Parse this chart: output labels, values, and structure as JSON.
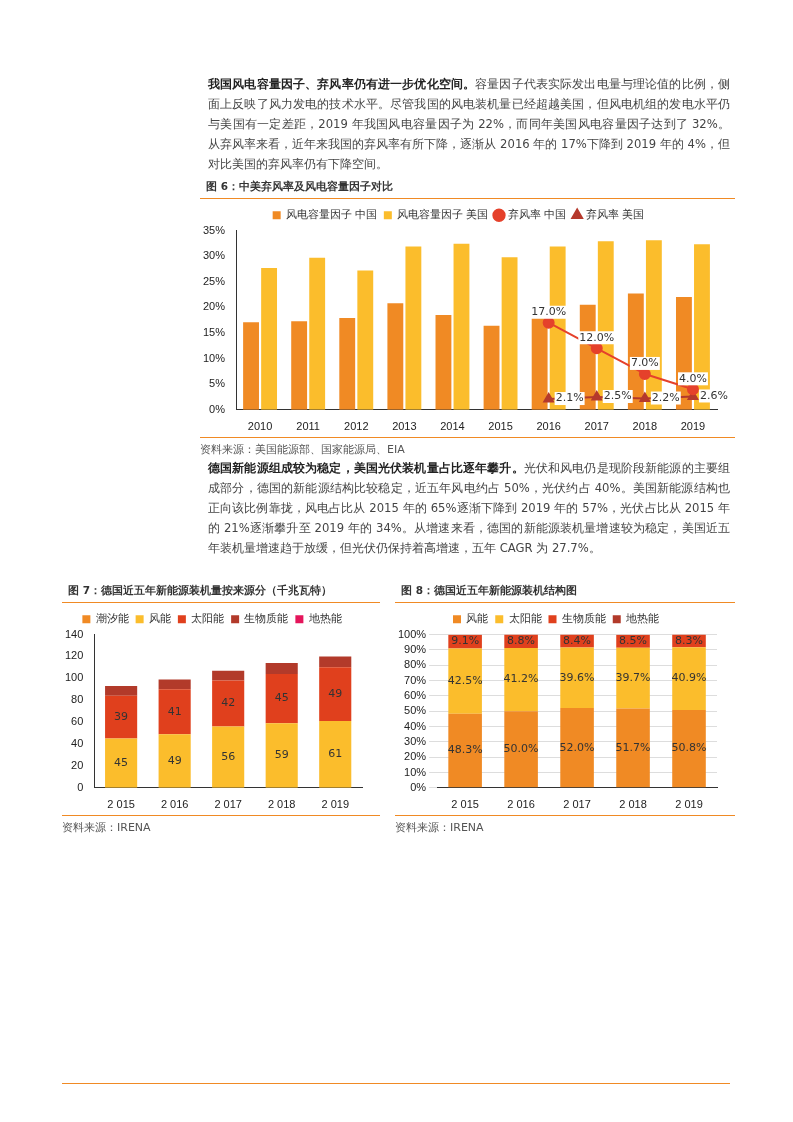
{
  "chart_data": [
    {
      "type": "other",
      "title": "我国风电容量因子、弃风率仍有进一步优化空间。",
      "subtitle": "容量因子代表实际发出电量与理论值的比例，侧面上反映了风力发电的技术水平。尽管我国的风电装机量已经超越美国，但风电机组的发电水平仍与美国有一定差距，2019 年我国风电容量因子为 22%，而同年美国风电容量因子达到了 32%。从弃风率来看，近年来我国的弃风率有所下降，逐渐从 2016 年的 17%下降到 2019 年的 4%，但对比美国的弃风率仍有下降空间。"
    },
    {
      "type": "bar",
      "title": "图 6：中美弃风率及风电容量因子对比",
      "categories": [
        "2010",
        "2011",
        "2012",
        "2013",
        "2014",
        "2015",
        "2016",
        "2017",
        "2018",
        "2019"
      ],
      "series": [
        {
          "name": "风电容量因子 中国",
          "color": "#f08a24",
          "values": [
            17.1,
            17.3,
            17.9,
            20.8,
            18.5,
            16.4,
            18.1,
            20.5,
            22.7,
            22.0
          ]
        },
        {
          "name": "风电容量因子 美国",
          "color": "#fbbd2c",
          "values": [
            27.7,
            29.7,
            27.2,
            31.9,
            32.4,
            29.8,
            31.9,
            32.9,
            33.1,
            32.3
          ]
        },
        {
          "name": "弃风率 中国",
          "type": "line",
          "marker": "circle",
          "color": "#e5412b",
          "values": [
            null,
            null,
            null,
            null,
            null,
            null,
            17.0,
            12.0,
            7.0,
            4.0
          ],
          "value_labels": [
            null,
            null,
            null,
            null,
            null,
            null,
            "17.0%",
            "12.0%",
            "7.0%",
            "4.0%"
          ]
        },
        {
          "name": "弃风率 美国",
          "type": "line",
          "marker": "triangle",
          "color": "#b5392c",
          "values": [
            null,
            null,
            null,
            null,
            null,
            null,
            2.1,
            2.5,
            2.2,
            2.6
          ],
          "value_labels": [
            null,
            null,
            null,
            null,
            null,
            null,
            "2.1%",
            "2.5%",
            "2.2%",
            "2.6%"
          ]
        }
      ],
      "ylim": [
        0,
        35
      ],
      "yticks": [
        {
          "value": 0,
          "label": "0%"
        },
        {
          "value": 5,
          "label": "5%"
        },
        {
          "value": 10,
          "label": "10%"
        },
        {
          "value": 15,
          "label": "15%"
        },
        {
          "value": 20,
          "label": "20%"
        },
        {
          "value": 25,
          "label": "25%"
        },
        {
          "value": 30,
          "label": "30%"
        },
        {
          "value": 35,
          "label": "35%"
        }
      ],
      "legend": "top",
      "annotations": [
        "资料来源：美国能源部、国家能源局、EIA"
      ]
    },
    {
      "type": "other",
      "title": "德国新能源组成较为稳定，美国光伏装机量占比逐年攀升。",
      "subtitle": "光伏和风电仍是现阶段新能源的主要组成部分，德国的新能源结构比较稳定，近五年风电约占 50%，光伏约占 40%。美国新能源结构也正向该比例靠拢，风电占比从 2015 年的 65%逐渐下降到 2019 年的 57%，光伏占比从 2015 年的 21%逐渐攀升至 2019 年的 34%。从增速来看，德国的新能源装机量增速较为稳定，美国近五年装机量增速趋于放缓，但光伏仍保持着高增速，五年 CAGR 为 27.7%。"
    },
    {
      "type": "bar",
      "stacked": true,
      "title": "图 7：德国近五年新能源装机量按来源分（千兆瓦特）",
      "categories": [
        "2 015",
        "2 016",
        "2 017",
        "2 018",
        "2 019"
      ],
      "series": [
        {
          "name": "潮汐能",
          "color": "#f08a24",
          "values": [
            0,
            0,
            0,
            0,
            0
          ]
        },
        {
          "name": "风能",
          "color": "#fbbd2c",
          "values": [
            45,
            49,
            56,
            59,
            61
          ],
          "value_labels": [
            "45",
            "49",
            "56",
            "59",
            "61"
          ]
        },
        {
          "name": "太阳能",
          "color": "#e0401d",
          "values": [
            39,
            41,
            42,
            45,
            49
          ],
          "value_labels": [
            "39",
            "41",
            "42",
            "45",
            "49"
          ]
        },
        {
          "name": "生物质能",
          "color": "#b23a2a",
          "values": [
            9,
            9,
            9,
            10,
            10
          ]
        },
        {
          "name": "地热能",
          "color": "#e4155b",
          "values": [
            0,
            0,
            0,
            0,
            0
          ]
        }
      ],
      "ylim": [
        0,
        140
      ],
      "yticks": [
        0,
        20,
        40,
        60,
        80,
        100,
        120,
        140
      ],
      "legend": "top",
      "annotations": [
        "资料来源：IRENA"
      ]
    },
    {
      "type": "bar",
      "stacked": true,
      "title": "图 8：德国近五年新能源装机结构图",
      "categories": [
        "2 015",
        "2 016",
        "2 017",
        "2 018",
        "2 019"
      ],
      "series": [
        {
          "name": "风能",
          "color": "#f08a24",
          "values": [
            48.3,
            50.0,
            52.0,
            51.7,
            50.8
          ],
          "value_labels": [
            "48.3%",
            "50.0%",
            "52.0%",
            "51.7%",
            "50.8%"
          ]
        },
        {
          "name": "太阳能",
          "color": "#fbbd2c",
          "values": [
            42.5,
            41.2,
            39.6,
            39.7,
            40.9
          ],
          "value_labels": [
            "42.5%",
            "41.2%",
            "39.6%",
            "39.7%",
            "40.9%"
          ]
        },
        {
          "name": "生物质能",
          "color": "#e0401d",
          "values": [
            9.1,
            8.8,
            8.4,
            8.5,
            8.3
          ],
          "value_labels": [
            "9.1%",
            "8.8%",
            "8.4%",
            "8.5%",
            "8.3%"
          ]
        },
        {
          "name": "地热能",
          "color": "#b23a2a",
          "values": [
            0,
            0,
            0,
            0,
            0
          ]
        }
      ],
      "ylim": [
        0,
        100
      ],
      "yticks": [
        {
          "value": 0,
          "label": "0%"
        },
        {
          "value": 10,
          "label": "10%"
        },
        {
          "value": 20,
          "label": "20%"
        },
        {
          "value": 30,
          "label": "30%"
        },
        {
          "value": 40,
          "label": "40%"
        },
        {
          "value": 50,
          "label": "50%"
        },
        {
          "value": 60,
          "label": "60%"
        },
        {
          "value": 70,
          "label": "70%"
        },
        {
          "value": 80,
          "label": "80%"
        },
        {
          "value": 90,
          "label": "90%"
        },
        {
          "value": 100,
          "label": "100%"
        }
      ],
      "grid": "y",
      "legend": "top",
      "annotations": [
        "资料来源：IRENA"
      ]
    }
  ]
}
